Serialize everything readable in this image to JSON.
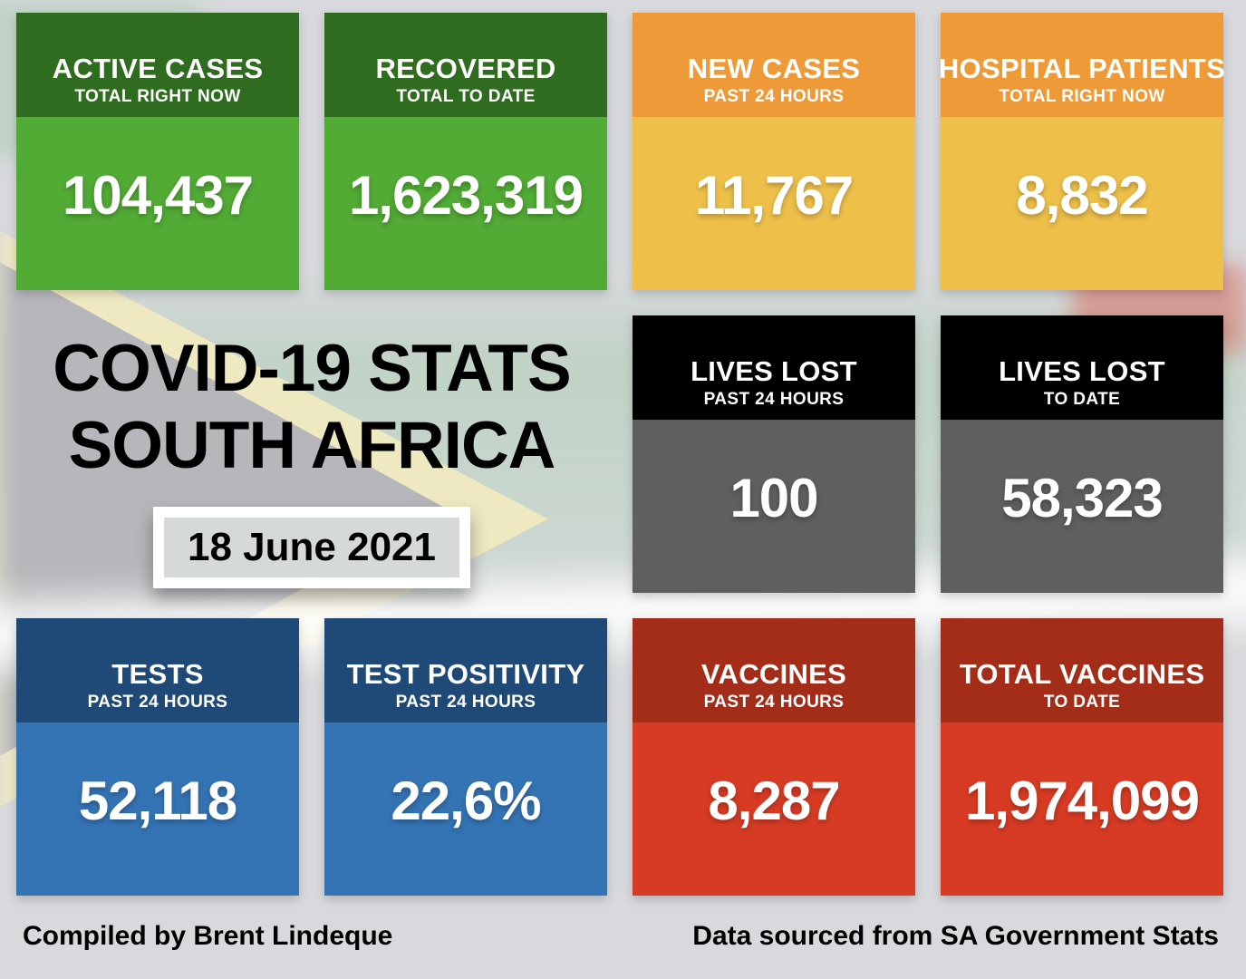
{
  "page": {
    "title_line1": "COVID-19 STATS",
    "title_line2": "SOUTH AFRICA",
    "date": "18 June 2021",
    "footer_left": "Compiled by Brent Lindeque",
    "footer_right": "Data sourced from SA Government Stats"
  },
  "colors": {
    "green_header": "#2F6C20",
    "green_body": "#52AB35",
    "orange_header": "#EF9A38",
    "orange_body": "#EEC04A",
    "black_header": "#000000",
    "gray_body": "#5F5F5F",
    "blue_header": "#1F4A77",
    "blue_body": "#3474B4",
    "red_header": "#A32D18",
    "red_body": "#D83B24",
    "card_text": "#FFFFFF",
    "title_text": "#000000"
  },
  "cards": [
    {
      "title": "ACTIVE CASES",
      "subtitle": "TOTAL RIGHT NOW",
      "value": "104,437",
      "header_color": "#2F6C20",
      "body_color": "#52AB35"
    },
    {
      "title": "RECOVERED",
      "subtitle": "TOTAL TO DATE",
      "value": "1,623,319",
      "header_color": "#2F6C20",
      "body_color": "#52AB35"
    },
    {
      "title": "NEW CASES",
      "subtitle": "PAST 24 HOURS",
      "value": "11,767",
      "header_color": "#EF9A38",
      "body_color": "#EEC04A"
    },
    {
      "title": "HOSPITAL PATIENTS",
      "subtitle": "TOTAL RIGHT NOW",
      "value": "8,832",
      "header_color": "#EF9A38",
      "body_color": "#EEC04A"
    },
    {
      "title": "LIVES LOST",
      "subtitle": "PAST 24 HOURS",
      "value": "100",
      "header_color": "#000000",
      "body_color": "#5F5F5F"
    },
    {
      "title": "LIVES LOST",
      "subtitle": "TO DATE",
      "value": "58,323",
      "header_color": "#000000",
      "body_color": "#5F5F5F"
    },
    {
      "title": "TESTS",
      "subtitle": "PAST 24 HOURS",
      "value": "52,118",
      "header_color": "#1F4A77",
      "body_color": "#3474B4"
    },
    {
      "title": "TEST POSITIVITY",
      "subtitle": "PAST 24 HOURS",
      "value": "22,6%",
      "header_color": "#1F4A77",
      "body_color": "#3474B4"
    },
    {
      "title": "VACCINES",
      "subtitle": "PAST 24 HOURS",
      "value": "8,287",
      "header_color": "#A32D18",
      "body_color": "#D83B24"
    },
    {
      "title": "TOTAL VACCINES",
      "subtitle": "TO DATE",
      "value": "1,974,099",
      "header_color": "#A32D18",
      "body_color": "#D83B24"
    }
  ],
  "chart_data": {
    "type": "table",
    "title": "COVID-19 STATS SOUTH AFRICA",
    "subtitle": "18 June 2021",
    "categories": [
      "Active cases (total right now)",
      "Recovered (total to date)",
      "New cases (past 24 hours)",
      "Hospital patients (total right now)",
      "Lives lost (past 24 hours)",
      "Lives lost (to date)",
      "Tests (past 24 hours)",
      "Test positivity % (past 24 hours)",
      "Vaccines (past 24 hours)",
      "Total vaccines (to date)"
    ],
    "values": [
      104437,
      1623319,
      11767,
      8832,
      100,
      58323,
      52118,
      22.6,
      8287,
      1974099
    ]
  }
}
